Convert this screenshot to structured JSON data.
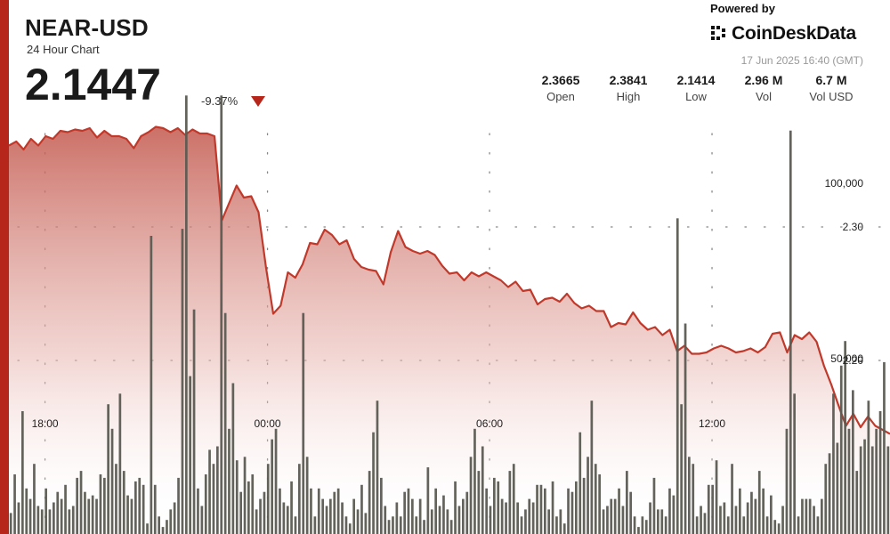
{
  "header": {
    "pair": "NEAR-USD",
    "subtitle": "24 Hour Chart",
    "price": "2.1447",
    "change": "-9.37%",
    "powered_by": "Powered by",
    "brand": "CoinDeskData",
    "timestamp": "17 Jun 2025 16:40 (GMT)"
  },
  "stats": [
    {
      "value": "2.3665",
      "label": "Open"
    },
    {
      "value": "2.3841",
      "label": "High"
    },
    {
      "value": "2.1414",
      "label": "Low"
    },
    {
      "value": "2.96 M",
      "label": "Vol"
    },
    {
      "value": "6.7 M",
      "label": "Vol USD"
    }
  ],
  "colors": {
    "accent": "#b7261b",
    "line": "#c0392b",
    "volume_bar": "#5b5b52"
  },
  "chart_data": {
    "type": "line",
    "price_series": {
      "values": [
        2.361,
        2.364,
        2.358,
        2.366,
        2.361,
        2.368,
        2.366,
        2.372,
        2.371,
        2.373,
        2.372,
        2.374,
        2.367,
        2.372,
        2.368,
        2.368,
        2.366,
        2.359,
        2.368,
        2.371,
        2.375,
        2.374,
        2.371,
        2.374,
        2.369,
        2.373,
        2.37,
        2.37,
        2.368,
        2.305,
        2.318,
        2.331,
        2.322,
        2.323,
        2.311,
        2.27,
        2.235,
        2.241,
        2.266,
        2.262,
        2.272,
        2.288,
        2.287,
        2.298,
        2.294,
        2.287,
        2.29,
        2.276,
        2.27,
        2.268,
        2.267,
        2.257,
        2.281,
        2.297,
        2.285,
        2.282,
        2.28,
        2.282,
        2.279,
        2.271,
        2.265,
        2.266,
        2.26,
        2.266,
        2.263,
        2.266,
        2.263,
        2.26,
        2.255,
        2.259,
        2.252,
        2.253,
        2.242,
        2.246,
        2.247,
        2.244,
        2.25,
        2.243,
        2.239,
        2.241,
        2.237,
        2.237,
        2.225,
        2.228,
        2.227,
        2.236,
        2.228,
        2.223,
        2.225,
        2.219,
        2.223,
        2.207,
        2.211,
        2.205,
        2.205,
        2.206,
        2.209,
        2.211,
        2.209,
        2.206,
        2.207,
        2.209,
        2.206,
        2.21,
        2.22,
        2.221,
        2.206,
        2.219,
        2.216,
        2.221,
        2.214,
        2.196,
        2.182,
        2.166,
        2.151,
        2.16,
        2.15,
        2.158,
        2.151,
        2.148,
        2.145
      ]
    },
    "volume": {
      "values": [
        6000,
        17000,
        9000,
        35000,
        13000,
        10000,
        20000,
        8000,
        7000,
        13000,
        7000,
        9000,
        12000,
        10000,
        14000,
        7000,
        8000,
        16000,
        18000,
        12000,
        10000,
        11000,
        10000,
        17000,
        16000,
        37000,
        30000,
        20000,
        40000,
        18000,
        11000,
        10000,
        15000,
        16000,
        14000,
        3000,
        85000,
        14000,
        5000,
        2000,
        4000,
        7000,
        9000,
        16000,
        87000,
        125000,
        45000,
        64000,
        13000,
        8000,
        17000,
        24000,
        20000,
        25000,
        125000,
        63000,
        30000,
        43000,
        21000,
        12000,
        22000,
        15000,
        17000,
        7000,
        10000,
        12000,
        20000,
        27000,
        30000,
        13000,
        9000,
        8000,
        15000,
        5000,
        20000,
        63000,
        22000,
        13000,
        5000,
        13000,
        10000,
        8000,
        10000,
        12000,
        13000,
        9000,
        5000,
        3000,
        10000,
        7000,
        14000,
        6000,
        18000,
        29000,
        38000,
        16000,
        8000,
        4000,
        5000,
        9000,
        5000,
        12000,
        13000,
        10000,
        5000,
        10000,
        4000,
        19000,
        7000,
        13000,
        8000,
        11000,
        7000,
        4000,
        15000,
        8000,
        10000,
        12000,
        22000,
        30000,
        18000,
        25000,
        13000,
        8000,
        16000,
        15000,
        10000,
        9000,
        18000,
        20000,
        9000,
        5000,
        7000,
        10000,
        9000,
        14000,
        14000,
        13000,
        7000,
        15000,
        5000,
        7000,
        3000,
        13000,
        12000,
        15000,
        29000,
        16000,
        22000,
        38000,
        20000,
        17000,
        7000,
        8000,
        10000,
        10000,
        13000,
        8000,
        18000,
        12000,
        5000,
        2000,
        5000,
        4000,
        9000,
        16000,
        7000,
        7000,
        5000,
        13000,
        11000,
        90000,
        37000,
        60000,
        22000,
        20000,
        5000,
        8000,
        6000,
        14000,
        14000,
        21000,
        8000,
        9000,
        5000,
        20000,
        8000,
        13000,
        5000,
        9000,
        12000,
        10000,
        18000,
        13000,
        5000,
        11000,
        4000,
        3000,
        8000,
        30000,
        115000,
        40000,
        5000,
        10000,
        10000,
        10000,
        8000,
        5000,
        10000,
        20000,
        23000,
        40000,
        26000,
        48000,
        55000,
        30000,
        41000,
        18000,
        25000,
        27000,
        38000,
        25000,
        30000,
        35000,
        49000,
        25000
      ]
    },
    "x_ticks": [
      "18:00",
      "00:00",
      "06:00",
      "12:00"
    ],
    "y_ticks": [
      "2.30",
      "2.20"
    ],
    "volume_ticks": [
      "100,000",
      "50,000"
    ],
    "ylim": [
      2.07,
      2.43
    ],
    "volume_lim": [
      0,
      137000
    ],
    "grid": true
  }
}
